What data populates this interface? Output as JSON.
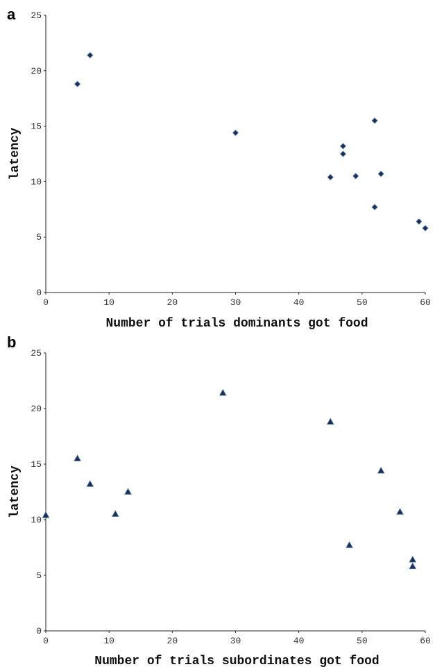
{
  "chart_data": [
    {
      "type": "scatter",
      "panel_label": "a",
      "xlabel": "Number of trials dominants got food",
      "ylabel": "latency",
      "xlim": [
        0,
        60
      ],
      "ylim": [
        0,
        25
      ],
      "x_ticks": [
        0,
        10,
        20,
        30,
        40,
        50,
        60
      ],
      "y_ticks": [
        0,
        5,
        10,
        15,
        20,
        25
      ],
      "marker": "diamond",
      "marker_color": "#1a2f55",
      "grid": false,
      "points": [
        {
          "x": 5,
          "y": 18.8
        },
        {
          "x": 7,
          "y": 21.4
        },
        {
          "x": 30,
          "y": 14.4
        },
        {
          "x": 45,
          "y": 10.4
        },
        {
          "x": 47,
          "y": 12.5
        },
        {
          "x": 47,
          "y": 13.2
        },
        {
          "x": 49,
          "y": 10.5
        },
        {
          "x": 52,
          "y": 15.5
        },
        {
          "x": 52,
          "y": 7.7
        },
        {
          "x": 53,
          "y": 10.7
        },
        {
          "x": 59,
          "y": 6.4
        },
        {
          "x": 60,
          "y": 5.8
        }
      ]
    },
    {
      "type": "scatter",
      "panel_label": "b",
      "xlabel": "Number of trials subordinates got food",
      "ylabel": "latency",
      "xlim": [
        0,
        60
      ],
      "ylim": [
        0,
        25
      ],
      "x_ticks": [
        0,
        10,
        20,
        30,
        40,
        50,
        60
      ],
      "y_ticks": [
        0,
        5,
        10,
        15,
        20,
        25
      ],
      "marker": "triangle",
      "marker_color": "#1a2f55",
      "grid": false,
      "points": [
        {
          "x": 0,
          "y": 10.4
        },
        {
          "x": 5,
          "y": 15.5
        },
        {
          "x": 7,
          "y": 13.2
        },
        {
          "x": 11,
          "y": 10.5
        },
        {
          "x": 13,
          "y": 12.5
        },
        {
          "x": 28,
          "y": 21.4
        },
        {
          "x": 45,
          "y": 18.8
        },
        {
          "x": 48,
          "y": 7.7
        },
        {
          "x": 53,
          "y": 14.4
        },
        {
          "x": 56,
          "y": 10.7
        },
        {
          "x": 58,
          "y": 6.4
        },
        {
          "x": 58,
          "y": 5.8
        }
      ]
    }
  ]
}
